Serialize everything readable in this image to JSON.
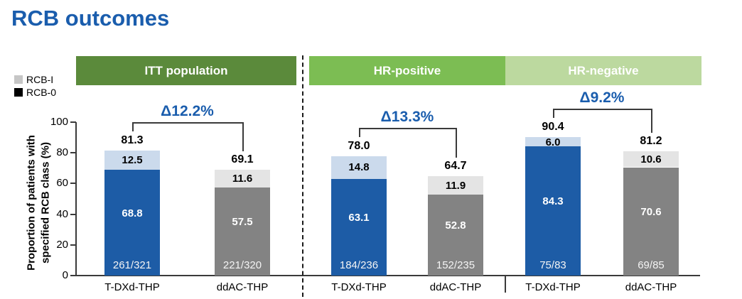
{
  "page": {
    "title": "RCB outcomes"
  },
  "legend": {
    "items": [
      {
        "label": "RCB-I",
        "swatch": "#C6C6C6"
      },
      {
        "label": "RCB-0",
        "swatch": "#000000"
      }
    ]
  },
  "y_axis": {
    "title_line1": "Proportion of patients with",
    "title_line2": "specified RCB class (%)",
    "ticks": [
      0,
      20,
      40,
      60,
      80,
      100
    ],
    "max": 100
  },
  "colors": {
    "title_blue": "#1A5DAD",
    "delta_blue": "#1A5DAD",
    "axis": "#3a3a3a",
    "tdxd_rcb0": "#1D5CA6",
    "tdxd_rcb1": "#CBDAEC",
    "ddac_rcb0": "#838383",
    "ddac_rcb1": "#E4E4E4"
  },
  "chart_data": {
    "type": "bar",
    "stacked": true,
    "title": "RCB outcomes",
    "ylabel": "Proportion of patients with specified RCB class (%)",
    "ylim": [
      0,
      100
    ],
    "legend_entries": [
      "RCB-I",
      "RCB-0"
    ],
    "legend_position": "upper-left",
    "grid": false,
    "series_note": "Each bar stacks RCB-0 (bottom, dark) and RCB-I (top, light); bar top label is the total of both.",
    "groups": [
      {
        "label": "ITT population",
        "header_color": "#5B8A3B",
        "delta_label": "Δ12.2%",
        "bars": [
          {
            "arm": "T-DXd-THP",
            "total": 81.3,
            "total_label": "81.3",
            "rcb0": 68.8,
            "rcb0_label": "68.8",
            "rcb1": 12.5,
            "rcb1_label": "12.5",
            "fraction": "261/321",
            "colors": {
              "rcb0": "#1D5CA6",
              "rcb1": "#CBDAEC"
            }
          },
          {
            "arm": "ddAC-THP",
            "total": 69.1,
            "total_label": "69.1",
            "rcb0": 57.5,
            "rcb0_label": "57.5",
            "rcb1": 11.6,
            "rcb1_label": "11.6",
            "fraction": "221/320",
            "colors": {
              "rcb0": "#838383",
              "rcb1": "#E4E4E4"
            }
          }
        ]
      },
      {
        "label": "HR-positive",
        "header_color": "#7CBD53",
        "delta_label": "Δ13.3%",
        "bars": [
          {
            "arm": "T-DXd-THP",
            "total": 78.0,
            "total_label": "78.0",
            "rcb0": 63.1,
            "rcb0_label": "63.1",
            "rcb1": 14.8,
            "rcb1_label": "14.8",
            "fraction": "184/236",
            "colors": {
              "rcb0": "#1D5CA6",
              "rcb1": "#CBDAEC"
            }
          },
          {
            "arm": "ddAC-THP",
            "total": 64.7,
            "total_label": "64.7",
            "rcb0": 52.8,
            "rcb0_label": "52.8",
            "rcb1": 11.9,
            "rcb1_label": "11.9",
            "fraction": "152/235",
            "colors": {
              "rcb0": "#838383",
              "rcb1": "#E4E4E4"
            }
          }
        ]
      },
      {
        "label": "HR-negative",
        "header_color": "#BCD99F",
        "delta_label": "Δ9.2%",
        "bars": [
          {
            "arm": "T-DXd-THP",
            "total": 90.4,
            "total_label": "90.4",
            "rcb0": 84.3,
            "rcb0_label": "84.3",
            "rcb1": 6.0,
            "rcb1_label": "6.0",
            "fraction": "75/83",
            "colors": {
              "rcb0": "#1D5CA6",
              "rcb1": "#CBDAEC"
            }
          },
          {
            "arm": "ddAC-THP",
            "total": 81.2,
            "total_label": "81.2",
            "rcb0": 70.6,
            "rcb0_label": "70.6",
            "rcb1": 10.6,
            "rcb1_label": "10.6",
            "fraction": "69/85",
            "colors": {
              "rcb0": "#838383",
              "rcb1": "#E4E4E4"
            }
          }
        ]
      }
    ]
  }
}
